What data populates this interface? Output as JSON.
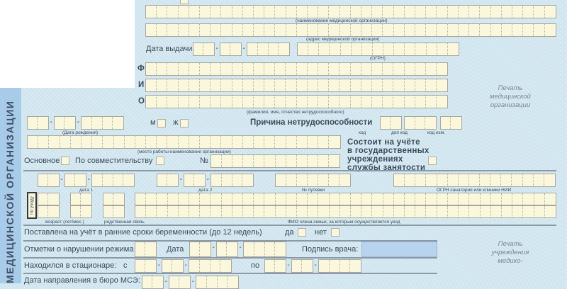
{
  "sidebar": {
    "vertical_label": "МЕДИЦИНСКОЙ ОРГАНИЗАЦИИ"
  },
  "header": {
    "org_name_caption": "(наименование медицинской организации)",
    "org_address_caption": "(адрес медицинской организации)",
    "issue_date_label": "Дата выдачи",
    "ogrn_caption": "(ОГРН)",
    "f_label": "Ф",
    "i_label": "И",
    "o_label": "О",
    "fio_caption": "(фамилия, имя, отчество нетрудоспособного)",
    "stamp_med_org": [
      "Печать",
      "медицинской",
      "организации"
    ]
  },
  "person": {
    "birth_date_caption": "(Дата рождения)",
    "male_label": "м",
    "female_label": "ж",
    "reason_label": "Причина нетрудоспособности",
    "code_caption": "код",
    "extra_code_caption": "доп код",
    "changed_code_caption": "код изм.",
    "workplace_caption": "(место работы-наименование организации)",
    "employment_service": [
      "Состоит на учёте",
      "в государственных",
      "учреждениях",
      "службы занятости"
    ],
    "main_job_label": "Основное",
    "part_time_label": "По совместительству",
    "number_label": "№"
  },
  "care": {
    "date1_caption": "дата 1",
    "date2_caption": "дата 2",
    "voucher_caption": "№ путевки",
    "sanatorium_ogrn_caption": "ОГРН санатория или клиники НИИ",
    "care_label": "по уходу",
    "age_caption": "возраст (лет/мес.)",
    "relation_caption": "родственная связь",
    "family_fio_caption": "ФИО члена семьи, за которым осуществляется уход"
  },
  "pregnancy": {
    "label": "Поставлена на учёт в ранние сроки беременности (до 12 недель)",
    "yes_label": "да",
    "no_label": "нет"
  },
  "violation": {
    "label": "Отметки о нарушении режима",
    "date_label": "Дата",
    "doctor_signature_label": "Подпись врача:"
  },
  "hospital": {
    "label": "Находился в стационаре:",
    "from_label": "с",
    "to_label": "по"
  },
  "mse": {
    "label": "Дата направления в бюро МСЭ:"
  },
  "stamp_mse": [
    "Печать",
    "учреждения",
    "медико-"
  ],
  "date_separator": "-"
}
